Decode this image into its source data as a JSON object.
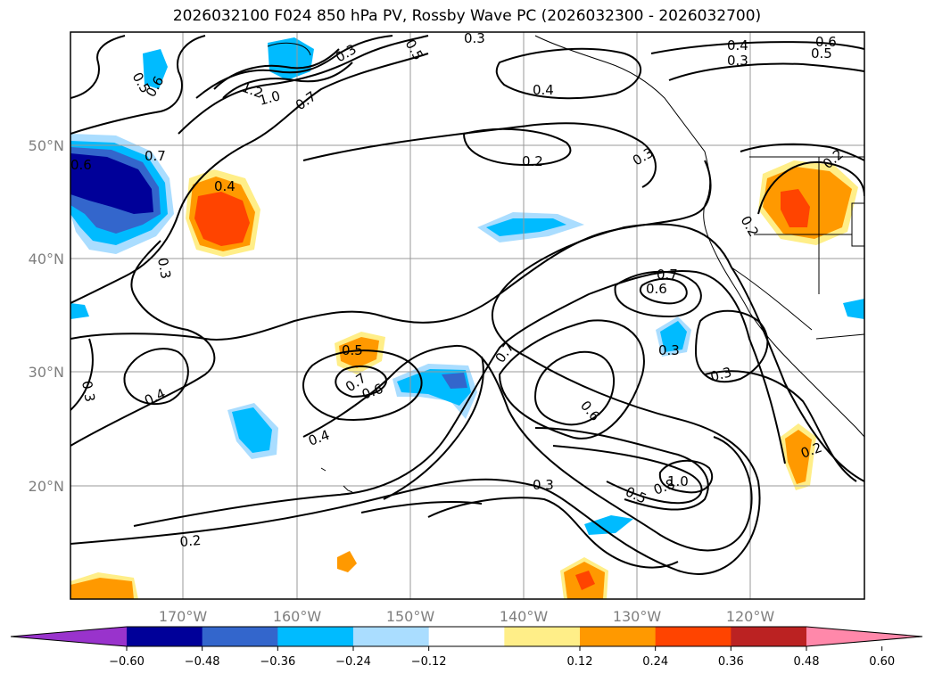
{
  "title": "2026032100 F024 850 hPa PV, Rossby Wave PC (2026032300 - 2026032700)",
  "axes": {
    "lon_ticks": [
      "170°W",
      "160°W",
      "150°W",
      "140°W",
      "130°W",
      "120°W"
    ],
    "lat_ticks": [
      "50°N",
      "40°N",
      "30°N",
      "20°N"
    ]
  },
  "contour_labels": [
    "0.5",
    "0.6",
    "0.7",
    "0.4",
    "0.3",
    "0.3",
    "0.5",
    "1.0",
    "1.2",
    "0.7",
    "0.3",
    "0.4",
    "0.3",
    "0.4",
    "0.5",
    "0.6",
    "0.2",
    "0.3",
    "0.2",
    "0.2",
    "0.7",
    "0.6",
    "0.3",
    "0.7",
    "0.5",
    "0.6",
    "0.7",
    "0.6",
    "0.4",
    "0.4",
    "0.3",
    "0.3",
    "0.5",
    "0.8",
    "1.0",
    "0.2",
    "0.2",
    "0.3",
    "0.6"
  ],
  "colorbar": {
    "ticks": [
      "−0.60",
      "−0.48",
      "−0.36",
      "−0.24",
      "−0.12",
      "0.12",
      "0.24",
      "0.36",
      "0.48",
      "0.60"
    ],
    "colors": [
      "#9933cc",
      "#000099",
      "#3366cc",
      "#00bbff",
      "#aaddff",
      "#ffffff",
      "#ffee88",
      "#ff9900",
      "#ff4400",
      "#bb2222",
      "#ff88aa"
    ]
  },
  "colors": {
    "neg_strong": "#000099",
    "neg_mid": "#3366cc",
    "neg": "#00bbff",
    "neg_weak": "#aaddff",
    "pos_weak": "#ffee88",
    "pos": "#ff9900",
    "pos_mid": "#ff4400"
  }
}
